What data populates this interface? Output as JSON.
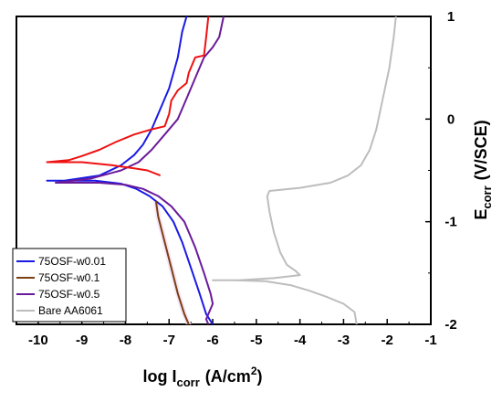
{
  "chart_data": {
    "type": "line",
    "title": "",
    "xlabel": {
      "base": "log I",
      "sub": "corr",
      "unit_pre": "(A/cm",
      "sup": "2",
      "unit_post": ")"
    },
    "ylabel": {
      "base": "E",
      "sub": "corr",
      "unit": "(V/SCE)"
    },
    "xlim": [
      -10.5,
      -1
    ],
    "ylim": [
      -2,
      1
    ],
    "x_ticks": [
      -10,
      -9,
      -8,
      -7,
      -6,
      -5,
      -4,
      -3,
      -2,
      -1
    ],
    "y_ticks": [
      1,
      0,
      -1,
      -2
    ],
    "x_tick_labels": [
      "-10",
      "-9",
      "-8",
      "-7",
      "-6",
      "-5",
      "-4",
      "-3",
      "-2",
      "-1"
    ],
    "y_tick_labels": [
      "1",
      "0",
      "-1",
      "-2"
    ],
    "grid": false,
    "legend": {
      "placement": "bottom-left",
      "entries": [
        "75OSF-w0.01",
        "75OSF-w0.1",
        "75OSF-w0.5",
        "Bare AA6061"
      ]
    },
    "series": [
      {
        "name": "75OSF-w0.01",
        "color": "#1a1ae6",
        "points": [
          [
            -6.6,
            1.0
          ],
          [
            -6.7,
            0.85
          ],
          [
            -6.8,
            0.6
          ],
          [
            -7.0,
            0.3
          ],
          [
            -7.2,
            0.1
          ],
          [
            -7.4,
            -0.1
          ],
          [
            -7.6,
            -0.25
          ],
          [
            -7.8,
            -0.35
          ],
          [
            -8.1,
            -0.45
          ],
          [
            -8.6,
            -0.55
          ],
          [
            -9.4,
            -0.6
          ],
          [
            -9.8,
            -0.6
          ],
          [
            -9.4,
            -0.6
          ],
          [
            -8.7,
            -0.6
          ],
          [
            -8.1,
            -0.63
          ],
          [
            -7.75,
            -0.68
          ],
          [
            -7.45,
            -0.75
          ],
          [
            -7.15,
            -0.85
          ],
          [
            -6.9,
            -1.0
          ],
          [
            -6.7,
            -1.2
          ],
          [
            -6.5,
            -1.45
          ],
          [
            -6.3,
            -1.7
          ],
          [
            -6.15,
            -1.9
          ],
          [
            -6.0,
            -2.0
          ]
        ]
      },
      {
        "name": "75OSF-w0.1",
        "color": "#7b3f12",
        "points": [
          [
            -7.3,
            -0.8
          ],
          [
            -7.25,
            -0.95
          ],
          [
            -7.1,
            -1.2
          ],
          [
            -6.95,
            -1.45
          ],
          [
            -6.8,
            -1.7
          ],
          [
            -6.65,
            -1.9
          ],
          [
            -6.55,
            -2.0
          ]
        ]
      },
      {
        "name": "75OSF-w0.5",
        "color": "#6a1b9a",
        "points": [
          [
            -5.75,
            1.0
          ],
          [
            -5.85,
            0.8
          ],
          [
            -6.0,
            0.7
          ],
          [
            -6.2,
            0.6
          ],
          [
            -6.4,
            0.4
          ],
          [
            -6.6,
            0.2
          ],
          [
            -6.8,
            0.0
          ],
          [
            -7.1,
            -0.15
          ],
          [
            -7.4,
            -0.3
          ],
          [
            -7.7,
            -0.42
          ],
          [
            -8.1,
            -0.5
          ],
          [
            -8.8,
            -0.58
          ],
          [
            -9.6,
            -0.62
          ],
          [
            -9.4,
            -0.62
          ],
          [
            -8.6,
            -0.62
          ],
          [
            -8.0,
            -0.64
          ],
          [
            -7.6,
            -0.68
          ],
          [
            -7.25,
            -0.75
          ],
          [
            -6.95,
            -0.85
          ],
          [
            -6.65,
            -1.0
          ],
          [
            -6.4,
            -1.25
          ],
          [
            -6.2,
            -1.5
          ],
          [
            -6.05,
            -1.7
          ],
          [
            -6.0,
            -1.8
          ],
          [
            -6.15,
            -1.95
          ],
          [
            -6.1,
            -2.0
          ]
        ]
      },
      {
        "name": "red",
        "color": "#ee1111",
        "points": [
          [
            -6.1,
            1.0
          ],
          [
            -6.15,
            0.8
          ],
          [
            -6.2,
            0.62
          ],
          [
            -6.4,
            0.6
          ],
          [
            -6.55,
            0.45
          ],
          [
            -6.6,
            0.35
          ],
          [
            -6.8,
            0.28
          ],
          [
            -6.95,
            0.18
          ],
          [
            -7.0,
            0.05
          ],
          [
            -7.1,
            -0.07
          ],
          [
            -7.4,
            -0.1
          ],
          [
            -7.8,
            -0.15
          ],
          [
            -8.2,
            -0.22
          ],
          [
            -8.6,
            -0.3
          ],
          [
            -9.0,
            -0.36
          ],
          [
            -9.3,
            -0.4
          ],
          [
            -9.8,
            -0.42
          ],
          [
            -9.0,
            -0.42
          ],
          [
            -8.3,
            -0.45
          ],
          [
            -7.8,
            -0.48
          ],
          [
            -7.5,
            -0.5
          ],
          [
            -7.2,
            -0.55
          ]
        ]
      },
      {
        "name": "Bare AA6061",
        "color": "#bdbdbd",
        "points": [
          [
            -1.8,
            1.0
          ],
          [
            -1.85,
            0.8
          ],
          [
            -1.95,
            0.5
          ],
          [
            -2.1,
            0.2
          ],
          [
            -2.25,
            -0.1
          ],
          [
            -2.4,
            -0.3
          ],
          [
            -2.6,
            -0.45
          ],
          [
            -2.9,
            -0.55
          ],
          [
            -3.3,
            -0.62
          ],
          [
            -4.0,
            -0.67
          ],
          [
            -4.7,
            -0.7
          ],
          [
            -4.75,
            -0.75
          ],
          [
            -4.7,
            -0.9
          ],
          [
            -4.6,
            -1.1
          ],
          [
            -4.45,
            -1.3
          ],
          [
            -4.3,
            -1.42
          ],
          [
            -4.1,
            -1.48
          ],
          [
            -4.0,
            -1.52
          ],
          [
            -4.6,
            -1.55
          ],
          [
            -5.4,
            -1.57
          ],
          [
            -6.0,
            -1.57
          ],
          [
            -5.5,
            -1.57
          ],
          [
            -4.8,
            -1.58
          ],
          [
            -4.2,
            -1.62
          ],
          [
            -3.8,
            -1.67
          ],
          [
            -3.4,
            -1.73
          ],
          [
            -3.0,
            -1.8
          ],
          [
            -2.75,
            -1.88
          ],
          [
            -2.7,
            -2.0
          ]
        ]
      }
    ]
  }
}
